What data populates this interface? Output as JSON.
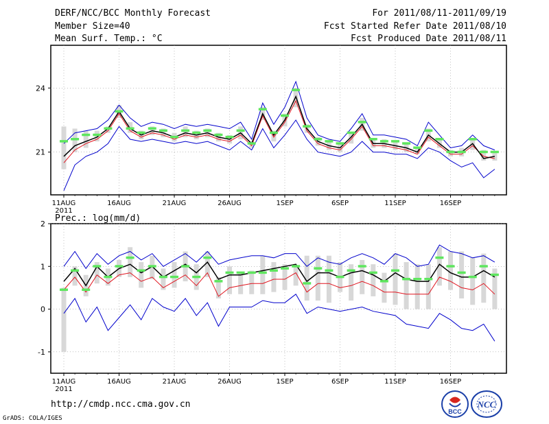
{
  "header": {
    "title": "DERF/NCC/BCC Monthly Forecast",
    "member_size": "Member Size=40",
    "variable": "Mean Surf. Temp.: °C",
    "period": "For 2011/08/11-2011/09/19",
    "started": "Fcst Started Refer Date 2011/08/10",
    "produced": "Fcst Produced Date 2011/08/11"
  },
  "footer": {
    "url": "http://cmdp.ncc.cma.gov.cn",
    "grads": "GrADS: COLA/IGES",
    "logo_bcc": "BCC",
    "logo_ncc": "NCC"
  },
  "colors": {
    "ensemble_mean": "#000000",
    "median": "#e0141e",
    "spread_envelope": "#0000cc",
    "member_bar": "#d8d8d8",
    "mode_marker": "#5ee65e"
  },
  "chart_data": [
    {
      "type": "line",
      "title": "Mean Surf. Temp.: °C",
      "xlabel": "",
      "ylabel": "",
      "x_tick_labels": [
        "11AUG",
        "16AUG",
        "21AUG",
        "26AUG",
        "1SEP",
        "6SEP",
        "11SEP",
        "16SEP"
      ],
      "x_tick_sublabel": "2011",
      "x": [
        0,
        1,
        2,
        3,
        4,
        5,
        6,
        7,
        8,
        9,
        10,
        11,
        12,
        13,
        14,
        15,
        16,
        17,
        18,
        19,
        20,
        21,
        22,
        23,
        24,
        25,
        26,
        27,
        28,
        29,
        30,
        31,
        32,
        33,
        34,
        35,
        36,
        37,
        38,
        39
      ],
      "ylim": [
        19.0,
        26.0
      ],
      "y_ticks": [
        21,
        24
      ],
      "grid": true,
      "series": [
        {
          "name": "upper-envelope",
          "role": "max",
          "values": [
            21.4,
            21.9,
            22.0,
            22.1,
            22.5,
            23.2,
            22.6,
            22.2,
            22.4,
            22.3,
            22.1,
            22.3,
            22.2,
            22.3,
            22.2,
            22.1,
            22.4,
            21.6,
            23.3,
            22.3,
            23.1,
            24.3,
            22.6,
            21.8,
            21.6,
            21.5,
            22.1,
            22.8,
            21.8,
            21.8,
            21.7,
            21.6,
            21.3,
            22.4,
            21.8,
            21.2,
            21.3,
            21.8,
            21.3,
            21.1
          ]
        },
        {
          "name": "median",
          "role": "median",
          "values": [
            20.5,
            21.1,
            21.4,
            21.6,
            22.0,
            22.8,
            22.0,
            21.7,
            21.9,
            21.8,
            21.6,
            21.8,
            21.7,
            21.8,
            21.6,
            21.5,
            21.8,
            21.3,
            22.7,
            21.7,
            22.4,
            23.4,
            22.0,
            21.4,
            21.2,
            21.1,
            21.6,
            22.2,
            21.3,
            21.3,
            21.2,
            21.1,
            20.9,
            21.7,
            21.3,
            20.9,
            20.9,
            21.3,
            20.8,
            20.7
          ]
        },
        {
          "name": "ensemble-mean",
          "role": "mean",
          "values": [
            20.8,
            21.3,
            21.5,
            21.7,
            22.1,
            22.9,
            22.1,
            21.8,
            22.0,
            21.9,
            21.7,
            21.9,
            21.8,
            21.9,
            21.7,
            21.6,
            21.9,
            21.4,
            22.8,
            21.8,
            22.5,
            23.6,
            22.1,
            21.5,
            21.3,
            21.2,
            21.7,
            22.3,
            21.4,
            21.4,
            21.3,
            21.2,
            21.0,
            21.8,
            21.4,
            21.0,
            21.0,
            21.4,
            20.7,
            20.8
          ]
        },
        {
          "name": "lower-envelope",
          "role": "min",
          "values": [
            19.2,
            20.4,
            20.8,
            21.0,
            21.4,
            22.2,
            21.6,
            21.5,
            21.6,
            21.5,
            21.4,
            21.5,
            21.4,
            21.5,
            21.3,
            21.1,
            21.5,
            21.1,
            22.1,
            21.2,
            21.8,
            22.5,
            21.6,
            21.0,
            20.9,
            20.8,
            21.0,
            21.5,
            21.0,
            21.0,
            20.9,
            20.9,
            20.7,
            21.2,
            21.0,
            20.6,
            20.3,
            20.5,
            19.8,
            20.2
          ]
        }
      ],
      "member_bars": {
        "low": [
          20.2,
          21.0,
          21.2,
          21.5,
          21.9,
          22.6,
          21.9,
          21.6,
          21.8,
          21.7,
          21.5,
          21.7,
          21.6,
          21.7,
          21.5,
          21.4,
          21.6,
          21.2,
          22.5,
          21.5,
          22.2,
          23.1,
          21.9,
          21.3,
          21.1,
          21.0,
          21.4,
          22.0,
          21.2,
          21.2,
          21.1,
          21.0,
          20.9,
          21.5,
          21.2,
          20.8,
          20.8,
          21.1,
          20.6,
          20.6
        ],
        "high": [
          22.2,
          22.1,
          22.0,
          22.0,
          22.2,
          23.2,
          22.4,
          22.0,
          22.2,
          22.1,
          21.9,
          22.2,
          22.0,
          22.1,
          21.9,
          21.8,
          22.2,
          21.5,
          23.1,
          22.0,
          22.8,
          24.0,
          22.3,
          21.7,
          21.5,
          21.4,
          21.9,
          22.6,
          21.6,
          21.6,
          21.5,
          21.4,
          21.2,
          22.1,
          21.6,
          21.1,
          21.2,
          21.6,
          21.1,
          21.0
        ]
      },
      "mode_markers": [
        21.5,
        21.6,
        21.8,
        21.8,
        22.1,
        22.9,
        22.1,
        21.9,
        22.1,
        22.0,
        21.7,
        22.0,
        21.9,
        22.0,
        21.8,
        21.7,
        22.0,
        21.4,
        23.0,
        21.9,
        22.7,
        23.9,
        22.2,
        21.6,
        21.5,
        21.4,
        21.9,
        22.4,
        21.6,
        21.5,
        21.5,
        21.4,
        21.2,
        22.0,
        21.6,
        21.0,
        21.0,
        21.6,
        21.0,
        21.0
      ]
    },
    {
      "type": "line",
      "title": "Prec.: log(mm/d)",
      "xlabel": "",
      "ylabel": "",
      "x_tick_labels": [
        "11AUG",
        "16AUG",
        "21AUG",
        "26AUG",
        "1SEP",
        "6SEP",
        "11SEP",
        "16SEP"
      ],
      "x_tick_sublabel": "2011",
      "x": [
        0,
        1,
        2,
        3,
        4,
        5,
        6,
        7,
        8,
        9,
        10,
        11,
        12,
        13,
        14,
        15,
        16,
        17,
        18,
        19,
        20,
        21,
        22,
        23,
        24,
        25,
        26,
        27,
        28,
        29,
        30,
        31,
        32,
        33,
        34,
        35,
        36,
        37,
        38,
        39
      ],
      "ylim": [
        -1.5,
        2.0
      ],
      "y_ticks": [
        -1,
        0,
        1,
        2
      ],
      "grid": true,
      "series": [
        {
          "name": "upper-envelope",
          "role": "max",
          "values": [
            1.0,
            1.35,
            0.95,
            1.3,
            1.05,
            1.25,
            1.35,
            1.15,
            1.3,
            1.0,
            1.15,
            1.3,
            1.1,
            1.35,
            1.05,
            1.15,
            1.2,
            1.25,
            1.25,
            1.2,
            1.3,
            1.3,
            1.0,
            1.2,
            1.1,
            1.05,
            1.2,
            1.3,
            1.2,
            1.05,
            1.3,
            1.2,
            1.0,
            1.05,
            1.5,
            1.35,
            1.3,
            1.2,
            1.25,
            1.1
          ]
        },
        {
          "name": "ensemble-mean",
          "role": "mean",
          "values": [
            0.65,
            0.95,
            0.55,
            1.0,
            0.75,
            0.95,
            1.05,
            0.85,
            1.0,
            0.75,
            0.9,
            1.05,
            0.85,
            1.1,
            0.7,
            0.8,
            0.8,
            0.85,
            0.9,
            0.95,
            1.0,
            1.05,
            0.65,
            0.85,
            0.85,
            0.75,
            0.85,
            0.9,
            0.8,
            0.65,
            0.85,
            0.7,
            0.65,
            0.65,
            1.05,
            0.85,
            0.75,
            0.75,
            0.9,
            0.75
          ]
        },
        {
          "name": "median",
          "role": "median",
          "values": [
            0.45,
            0.75,
            0.4,
            0.8,
            0.6,
            0.8,
            0.85,
            0.65,
            0.75,
            0.5,
            0.65,
            0.8,
            0.55,
            0.85,
            0.3,
            0.5,
            0.55,
            0.6,
            0.6,
            0.7,
            0.7,
            0.85,
            0.4,
            0.6,
            0.6,
            0.5,
            0.55,
            0.65,
            0.55,
            0.4,
            0.4,
            0.35,
            0.35,
            0.35,
            0.75,
            0.65,
            0.5,
            0.45,
            0.6,
            0.35
          ]
        },
        {
          "name": "lower-envelope",
          "role": "min",
          "values": [
            -0.1,
            0.25,
            -0.3,
            0.05,
            -0.5,
            -0.2,
            0.1,
            -0.25,
            0.25,
            0.05,
            -0.05,
            0.25,
            -0.15,
            0.15,
            -0.4,
            0.05,
            0.05,
            0.05,
            0.2,
            0.15,
            0.15,
            0.35,
            -0.1,
            0.05,
            0.0,
            -0.05,
            0.0,
            0.05,
            -0.05,
            -0.1,
            -0.15,
            -0.35,
            -0.4,
            -0.45,
            -0.1,
            -0.25,
            -0.45,
            -0.5,
            -0.35,
            -0.75
          ]
        }
      ],
      "member_bars": {
        "low": [
          -1.0,
          0.55,
          0.3,
          0.6,
          0.55,
          0.75,
          0.75,
          0.5,
          0.7,
          0.45,
          0.5,
          0.65,
          0.45,
          0.75,
          0.25,
          0.35,
          0.35,
          0.35,
          0.35,
          0.4,
          0.45,
          0.55,
          0.2,
          0.2,
          0.15,
          0.4,
          0.2,
          0.35,
          0.3,
          0.15,
          0.1,
          0.0,
          0.0,
          0.0,
          0.55,
          0.45,
          0.25,
          0.1,
          0.15,
          0.0
        ],
        "high": [
          0.5,
          1.0,
          0.8,
          1.1,
          0.95,
          1.15,
          1.45,
          1.1,
          1.25,
          0.95,
          1.1,
          1.35,
          1.05,
          1.35,
          0.75,
          1.0,
          0.85,
          0.9,
          1.25,
          1.1,
          1.05,
          1.0,
          1.25,
          1.25,
          1.25,
          1.1,
          1.05,
          1.15,
          1.05,
          0.85,
          1.3,
          1.1,
          1.05,
          1.05,
          1.45,
          1.35,
          1.35,
          1.2,
          1.3,
          0.95
        ]
      },
      "mode_markers": [
        0.45,
        0.9,
        0.45,
        1.0,
        0.75,
        1.0,
        1.2,
        0.9,
        1.0,
        0.75,
        0.75,
        1.0,
        0.75,
        1.2,
        0.65,
        0.85,
        0.85,
        0.85,
        0.85,
        0.9,
        0.95,
        1.0,
        0.6,
        0.95,
        0.9,
        0.75,
        0.9,
        1.0,
        0.85,
        0.65,
        0.9,
        0.7,
        0.7,
        0.7,
        1.2,
        1.0,
        0.85,
        0.75,
        1.0,
        0.8
      ]
    }
  ]
}
